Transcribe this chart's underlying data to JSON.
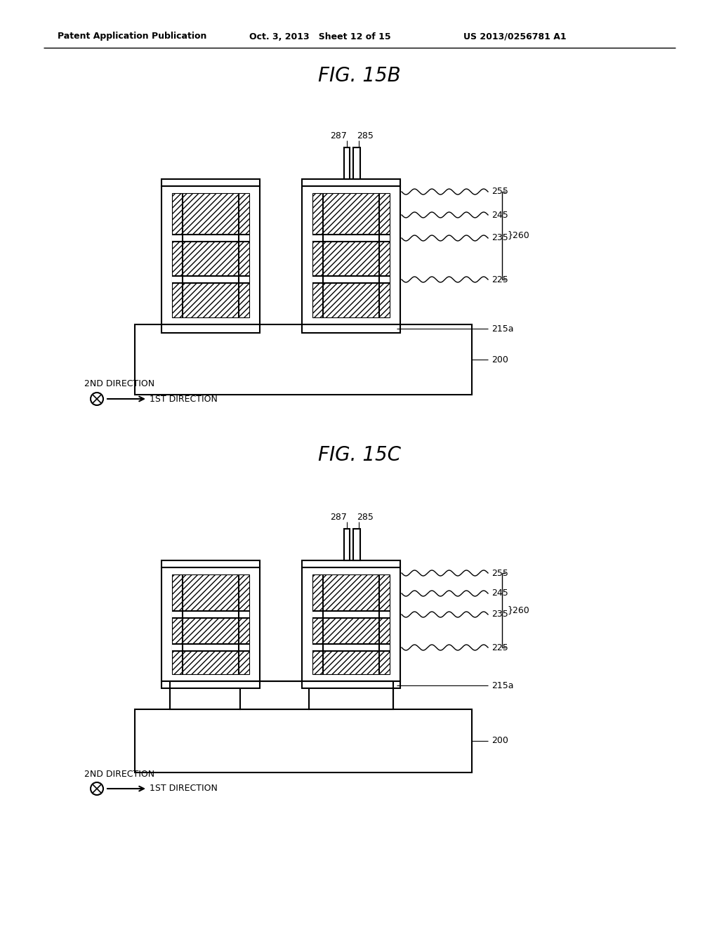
{
  "bg_color": "#ffffff",
  "header_left": "Patent Application Publication",
  "header_center": "Oct. 3, 2013   Sheet 12 of 15",
  "header_right": "US 2013/0256781 A1",
  "fig15b_title": "FIG. 15B",
  "fig15c_title": "FIG. 15C"
}
